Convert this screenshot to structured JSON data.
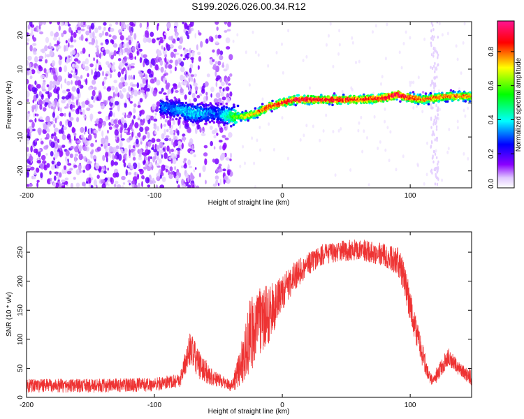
{
  "chart_data": [
    {
      "type": "heatmap",
      "title": "S199.2026.026.00.34.R12",
      "xlabel": "Height of straight line (km)",
      "ylabel": "Frequency (Hz)",
      "xlim": [
        -200,
        148
      ],
      "ylim": [
        -25,
        24
      ],
      "xticks": [
        -200,
        -100,
        0,
        100
      ],
      "yticks": [
        -20,
        -10,
        0,
        10,
        20
      ],
      "colorbar": {
        "label": "Normalized spectral amplitude",
        "range": [
          0,
          0.98
        ],
        "ticks": [
          0.0,
          0.2,
          0.4,
          0.6,
          0.8
        ],
        "tick_labels": [
          "0.0",
          "0.2",
          "0.4",
          "0.6",
          "0.8"
        ],
        "colormap": [
          "#ffffff",
          "#e0c8ff",
          "#8a00ff",
          "#0000ff",
          "#00ffff",
          "#00ff00",
          "#ffff00",
          "#ff0000",
          "#ff1493"
        ]
      },
      "noise_region_x": [
        -200,
        -40
      ],
      "ridge": {
        "x": [
          -95,
          -80,
          -70,
          -60,
          -50,
          -40,
          -30,
          -20,
          -10,
          0,
          10,
          20,
          40,
          60,
          80,
          90,
          100,
          110,
          120,
          130,
          148
        ],
        "frequency": [
          -1,
          -2,
          -3,
          -3,
          -3,
          -4,
          -4,
          -3,
          -1,
          0,
          1,
          1,
          1,
          1,
          1.5,
          2.5,
          1.5,
          1,
          1.5,
          2,
          2
        ],
        "peak_amplitude": [
          0.3,
          0.35,
          0.4,
          0.35,
          0.3,
          0.5,
          0.7,
          0.75,
          0.85,
          0.9,
          0.9,
          0.9,
          0.9,
          0.85,
          0.9,
          0.95,
          0.9,
          0.8,
          0.8,
          0.8,
          0.8
        ]
      }
    },
    {
      "type": "line",
      "title": "",
      "xlabel": "Height of straight line (km)",
      "ylabel": "SNR (10 * v/v)",
      "xlim": [
        -200,
        148
      ],
      "ylim": [
        0,
        285
      ],
      "xticks": [
        -200,
        -100,
        0,
        100
      ],
      "yticks": [
        0,
        50,
        100,
        150,
        200,
        250
      ],
      "color": "#ee3333",
      "series_envelope": {
        "x": [
          -200,
          -150,
          -100,
          -80,
          -72,
          -65,
          -60,
          -55,
          -50,
          -45,
          -40,
          -35,
          -30,
          -25,
          -20,
          -15,
          -10,
          -5,
          0,
          10,
          20,
          30,
          40,
          60,
          80,
          90,
          95,
          100,
          105,
          110,
          115,
          118,
          122,
          130,
          140,
          148
        ],
        "mean": [
          20,
          20,
          22,
          30,
          85,
          55,
          45,
          35,
          30,
          25,
          20,
          40,
          75,
          105,
          125,
          135,
          145,
          160,
          180,
          210,
          230,
          245,
          250,
          255,
          245,
          235,
          210,
          160,
          110,
          70,
          35,
          25,
          45,
          70,
          45,
          35
        ],
        "noise": [
          12,
          12,
          12,
          12,
          30,
          25,
          20,
          15,
          12,
          10,
          10,
          25,
          50,
          70,
          60,
          55,
          50,
          40,
          30,
          25,
          20,
          18,
          18,
          18,
          20,
          25,
          30,
          30,
          25,
          20,
          12,
          10,
          15,
          15,
          12,
          15
        ]
      }
    }
  ]
}
